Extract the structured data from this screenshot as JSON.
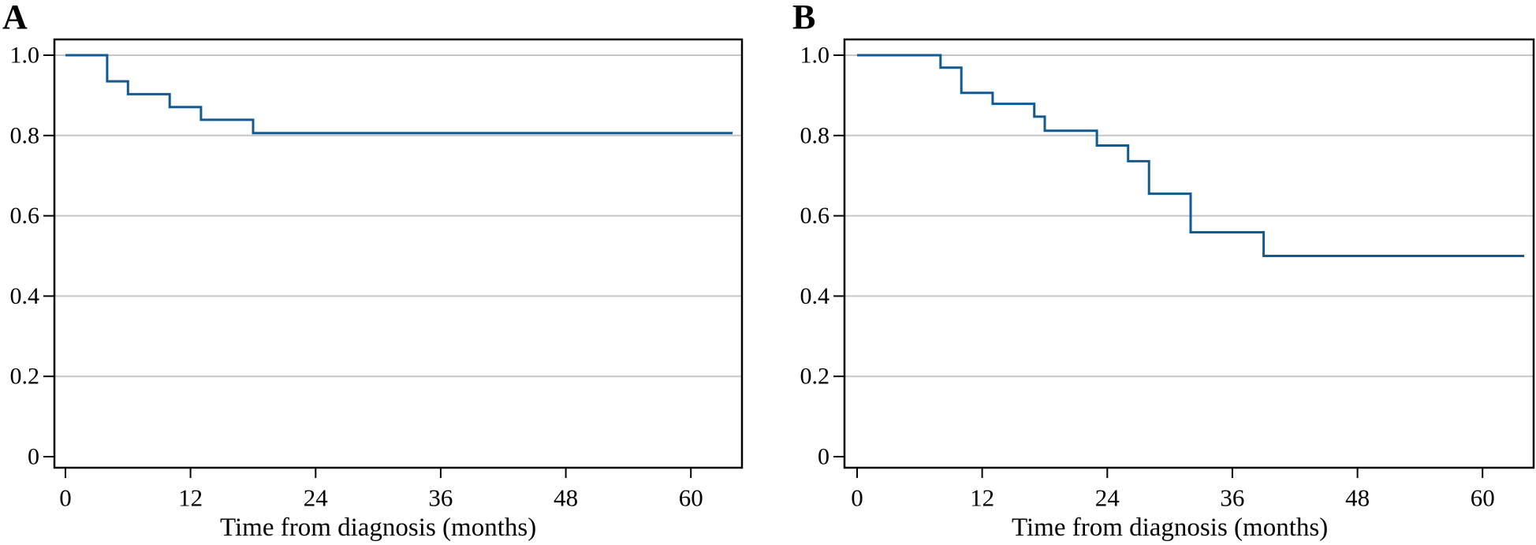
{
  "colors": {
    "curve": "#115a93",
    "grid": "#c5c5c5",
    "axis": "#000000",
    "text": "#000000",
    "background": "#ffffff"
  },
  "chart_data": [
    {
      "type": "line",
      "subtype": "kaplan-meier-step",
      "panel_label": "A",
      "title": "",
      "xlabel": "Time from diagnosis (months)",
      "ylabel": "",
      "xlim": [
        -1,
        65
      ],
      "ylim": [
        0,
        1.04
      ],
      "grid": "horizontal",
      "legend": null,
      "x_ticks": [
        {
          "v": 0,
          "label": "0"
        },
        {
          "v": 12,
          "label": "12"
        },
        {
          "v": 24,
          "label": "24"
        },
        {
          "v": 36,
          "label": "36"
        },
        {
          "v": 48,
          "label": "48"
        },
        {
          "v": 60,
          "label": "60"
        }
      ],
      "y_ticks": [
        {
          "v": 0,
          "label": "0"
        },
        {
          "v": 0.2,
          "label": "0.2"
        },
        {
          "v": 0.4,
          "label": "0.4"
        },
        {
          "v": 0.6,
          "label": "0.6"
        },
        {
          "v": 0.8,
          "label": "0.8"
        },
        {
          "v": 1.0,
          "label": "1.0"
        }
      ],
      "km_steps": [
        [
          0,
          1.0
        ],
        [
          4,
          0.935
        ],
        [
          6,
          0.903
        ],
        [
          10,
          0.871
        ],
        [
          13,
          0.839
        ],
        [
          18,
          0.806
        ]
      ],
      "end_time": 64,
      "final_value": 0.806
    },
    {
      "type": "line",
      "subtype": "kaplan-meier-step",
      "panel_label": "B",
      "title": "",
      "xlabel": "Time from diagnosis (months)",
      "ylabel": "",
      "xlim": [
        -1,
        65
      ],
      "ylim": [
        0,
        1.04
      ],
      "grid": "horizontal",
      "legend": null,
      "x_ticks": [
        {
          "v": 0,
          "label": "0"
        },
        {
          "v": 12,
          "label": "12"
        },
        {
          "v": 24,
          "label": "24"
        },
        {
          "v": 36,
          "label": "36"
        },
        {
          "v": 48,
          "label": "48"
        },
        {
          "v": 60,
          "label": "60"
        }
      ],
      "y_ticks": [
        {
          "v": 0,
          "label": "0"
        },
        {
          "v": 0.2,
          "label": "0.2"
        },
        {
          "v": 0.4,
          "label": "0.4"
        },
        {
          "v": 0.6,
          "label": "0.6"
        },
        {
          "v": 0.8,
          "label": "0.8"
        },
        {
          "v": 1.0,
          "label": "1.0"
        }
      ],
      "km_steps": [
        [
          0,
          1.0
        ],
        [
          8,
          0.969
        ],
        [
          10,
          0.906
        ],
        [
          13,
          0.879
        ],
        [
          17,
          0.847
        ],
        [
          18,
          0.812
        ],
        [
          23,
          0.775
        ],
        [
          26,
          0.736
        ],
        [
          28,
          0.655
        ],
        [
          32,
          0.559
        ],
        [
          39,
          0.5
        ]
      ],
      "end_time": 64,
      "final_value": 0.5
    }
  ]
}
